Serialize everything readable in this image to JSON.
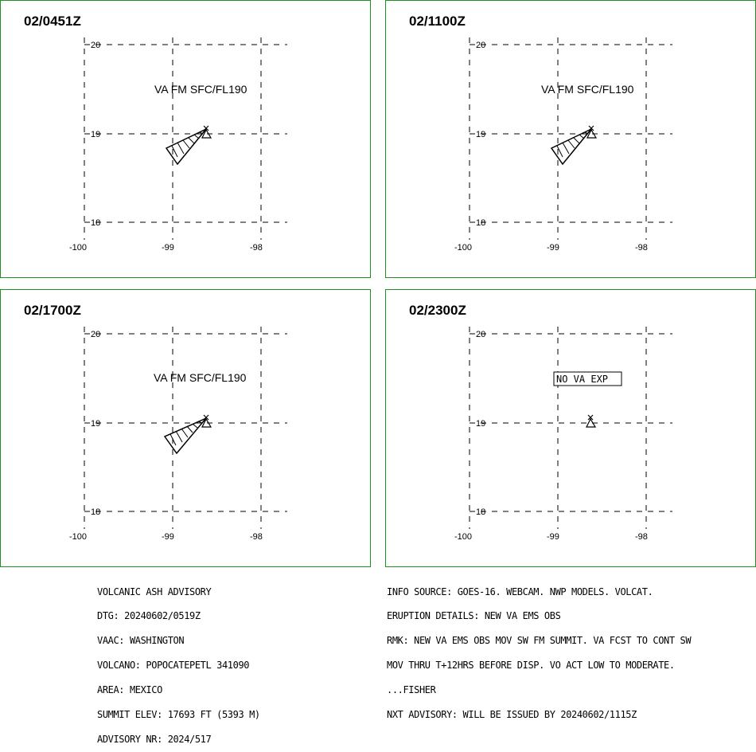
{
  "panels": [
    {
      "time": "02/0451Z",
      "label": "VA FM SFC/FL190",
      "ash": true
    },
    {
      "time": "02/1100Z",
      "label": "VA FM SFC/FL190",
      "ash": true
    },
    {
      "time": "02/1700Z",
      "label": "VA FM SFC/FL190",
      "ash": true
    },
    {
      "time": "02/2300Z",
      "label": "NO VA EXP",
      "ash": false
    }
  ],
  "map": {
    "lon_ticks": [
      "-100",
      "-99",
      "-98"
    ],
    "lat_ticks": [
      "20",
      "19",
      "18"
    ]
  },
  "advisory_left": [
    "VOLCANIC ASH ADVISORY",
    "DTG: 20240602/0519Z",
    "VAAC: WASHINGTON",
    "VOLCANO: POPOCATEPETL 341090",
    "AREA: MEXICO",
    "SUMMIT ELEV: 17693 FT (5393 M)",
    "ADVISORY NR: 2024/517"
  ],
  "advisory_right": [
    "INFO SOURCE: GOES-16. WEBCAM. NWP MODELS. VOLCAT.",
    "ERUPTION DETAILS: NEW VA EMS OBS",
    "RMK: NEW VA EMS OBS MOV SW FM SUMMIT. VA FCST TO CONT SW",
    "MOV THRU T+12HRS BEFORE DISP. VO ACT LOW TO MODERATE.",
    "...FISHER",
    "NXT ADVISORY: WILL BE ISSUED BY 20240602/1115Z"
  ],
  "colors": {
    "panel_border": "#1f8f1f",
    "lines": "#000000"
  }
}
